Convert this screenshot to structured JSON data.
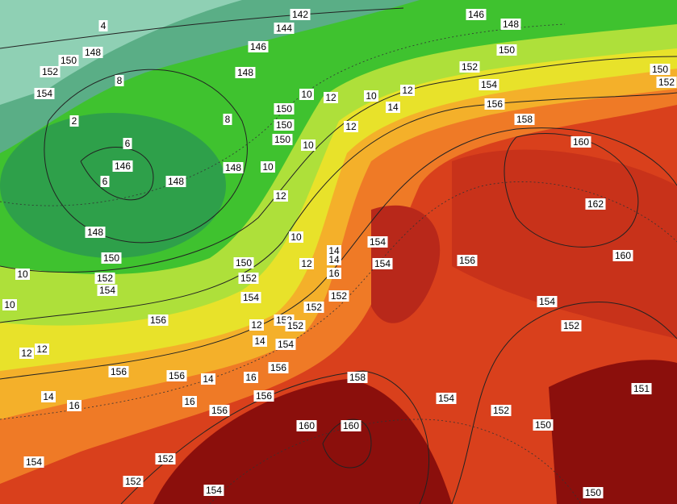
{
  "map": {
    "contour_labels": [
      "142",
      "144",
      "146",
      "148",
      "150",
      "146",
      "148",
      "150",
      "148",
      "152",
      "154",
      "152",
      "154",
      "156",
      "158",
      "160",
      "162",
      "160",
      "150",
      "150",
      "150",
      "148",
      "146",
      "148",
      "148",
      "150",
      "152",
      "154",
      "150",
      "152",
      "154",
      "154",
      "154",
      "156",
      "152",
      "152",
      "152",
      "152",
      "154",
      "156",
      "156",
      "156",
      "156",
      "156",
      "156",
      "158",
      "154",
      "152",
      "150",
      "160",
      "160",
      "152",
      "152",
      "154",
      "154",
      "154",
      "152",
      "150",
      "150",
      "152",
      "151",
      "10",
      "12",
      "10",
      "14",
      "12",
      "12",
      "10",
      "10",
      "12",
      "10",
      "12",
      "14",
      "14",
      "16",
      "12",
      "14",
      "16",
      "12",
      "16",
      "14",
      "8",
      "6",
      "4",
      "2",
      "8",
      "6",
      "10",
      "12",
      "10",
      "16",
      "14"
    ]
  }
}
